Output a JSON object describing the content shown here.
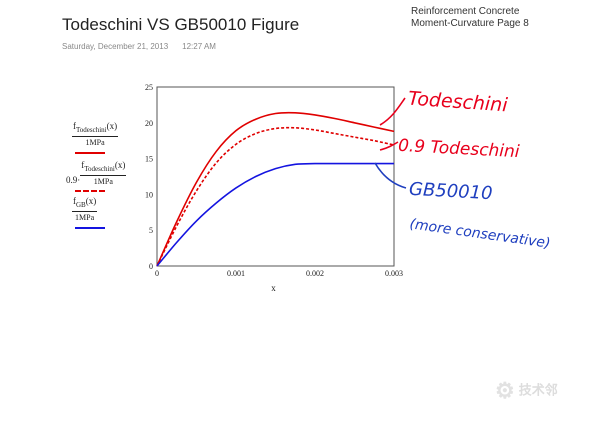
{
  "page": {
    "title": "Todeschini VS GB50010 Figure",
    "date": "Saturday, December 21, 2013",
    "time": "12:27 AM",
    "header_line1": "Reinforcement Concrete",
    "header_line2": "Moment-Curvature   Page 8"
  },
  "y_labels": [
    {
      "prefix": "",
      "numerator": "f_Todeschini(x)",
      "denominator": "1MPa"
    },
    {
      "prefix": "0.9·",
      "numerator": "f_Todeschini(x)",
      "denominator": "1MPa"
    },
    {
      "prefix": "",
      "numerator": "f_GB(x)",
      "denominator": "1MPa"
    }
  ],
  "annotations": [
    {
      "text": "Todeschini",
      "color": "#e8001c"
    },
    {
      "text": "0.9 Todeschini",
      "color": "#e8001c"
    },
    {
      "text": "GB50010",
      "color": "#1f3fbf"
    },
    {
      "text": "(more conservative)",
      "color": "#1f3fbf"
    }
  ],
  "watermark": {
    "icon": "gear-face-icon",
    "text": "技术邻"
  },
  "colors": {
    "red": "#e00000",
    "blue": "#1414e0",
    "ink_red": "#e8001c",
    "ink_blue": "#1f3fbf"
  },
  "chart_data": {
    "type": "line",
    "xlabel": "x",
    "ylabel": "",
    "xlim": [
      0,
      0.003
    ],
    "ylim": [
      0,
      25
    ],
    "xticks": [
      0,
      0.001,
      0.002,
      0.003
    ],
    "xtick_labels": [
      "0",
      "0.001",
      "0.002",
      "0.003"
    ],
    "yticks": [
      0,
      5,
      10,
      15,
      20,
      25
    ],
    "ytick_labels": [
      "0",
      "5",
      "10",
      "15",
      "20",
      "25"
    ],
    "grid": false,
    "series": [
      {
        "color": "#e00000",
        "style": "solid",
        "x": [
          0,
          0.00025,
          0.0005,
          0.00075,
          0.001,
          0.00125,
          0.0015,
          0.00175,
          0.002,
          0.00225,
          0.0025,
          0.00275,
          0.003
        ],
        "y": [
          0,
          6.2,
          11.7,
          16.0,
          18.9,
          20.5,
          21.3,
          21.4,
          21.1,
          20.6,
          20.0,
          19.4,
          18.8
        ]
      },
      {
        "color": "#e00000",
        "style": "dashed",
        "x": [
          0,
          0.00025,
          0.0005,
          0.00075,
          0.001,
          0.00125,
          0.0015,
          0.00175,
          0.002,
          0.00225,
          0.0025,
          0.00275,
          0.003
        ],
        "y": [
          0,
          5.6,
          10.5,
          14.4,
          17.0,
          18.5,
          19.2,
          19.3,
          19.0,
          18.5,
          18.0,
          17.5,
          16.9
        ]
      },
      {
        "color": "#1414e0",
        "style": "solid",
        "x": [
          0,
          0.00025,
          0.0005,
          0.00075,
          0.001,
          0.00125,
          0.0015,
          0.00175,
          0.002,
          0.00225,
          0.0025,
          0.00275,
          0.003
        ],
        "y": [
          0,
          3.3,
          6.3,
          8.8,
          10.9,
          12.5,
          13.6,
          14.2,
          14.3,
          14.3,
          14.3,
          14.3,
          14.3
        ]
      }
    ]
  }
}
